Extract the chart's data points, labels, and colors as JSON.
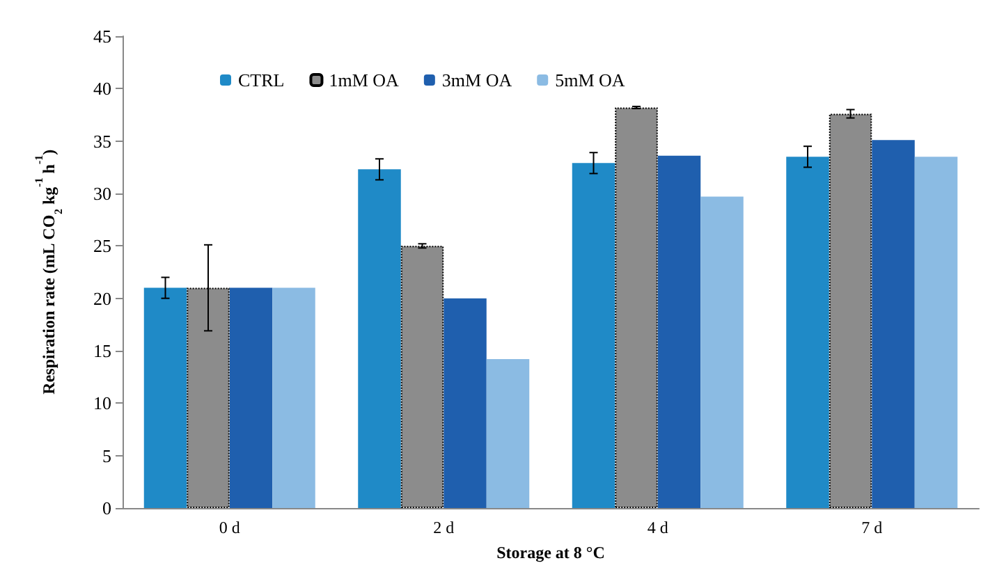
{
  "chart_data": {
    "type": "bar",
    "xlabel": "Storage at 8 °C",
    "ylabel": "Respiration rate (mL CO$_{2}$ kg$^{-1}$ h$^{-1}$)",
    "categories": [
      "0 d",
      "2 d",
      "4 d",
      "7 d"
    ],
    "series": [
      {
        "name": "CTRL",
        "color": "#1f8ac7",
        "values": [
          21,
          32.3,
          32.9,
          33.5
        ],
        "errors": [
          1,
          1,
          1,
          1
        ]
      },
      {
        "name": "1mM OA",
        "color": "#8c8c8c",
        "values": [
          21,
          25,
          38.2,
          37.6
        ],
        "errors": [
          4.1,
          0.2,
          0.1,
          0.4
        ]
      },
      {
        "name": "3mM OA",
        "color": "#1f5fae",
        "values": [
          21,
          20,
          33.6,
          35.1
        ]
      },
      {
        "name": "5mM OA",
        "color": "#8bbbe3",
        "values": [
          21,
          14.2,
          29.7,
          33.5
        ]
      }
    ],
    "ylim": [
      0,
      45
    ],
    "yticks": [
      0,
      5,
      10,
      15,
      20,
      25,
      30,
      35,
      40,
      45
    ],
    "grid": false,
    "legend": "top left"
  }
}
